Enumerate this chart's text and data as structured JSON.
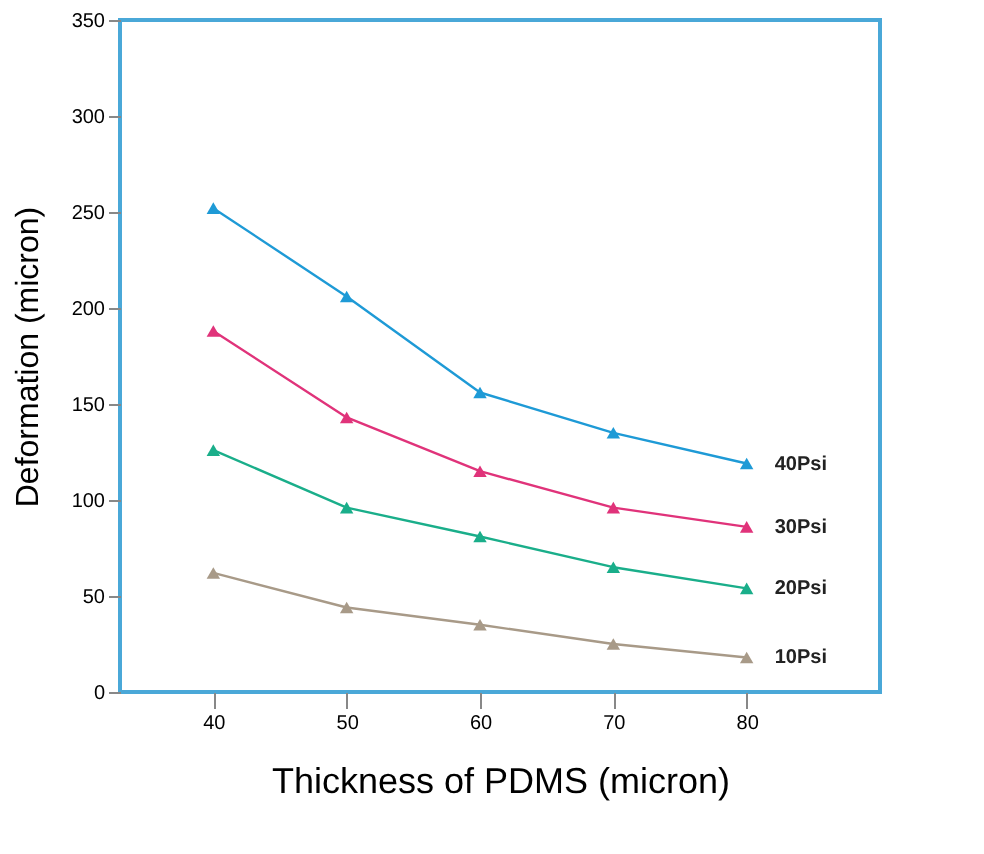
{
  "chart_data": {
    "type": "line",
    "xlabel": "Thickness of PDMS (micron)",
    "ylabel": "Deformation (micron)",
    "x": [
      40,
      50,
      60,
      70,
      80
    ],
    "xlim": [
      33,
      90
    ],
    "xticks": [
      40,
      50,
      60,
      70,
      80
    ],
    "ylim": [
      0,
      350
    ],
    "yticks": [
      0,
      50,
      100,
      150,
      200,
      250,
      300,
      350
    ],
    "grid": false,
    "legend": false,
    "marker": "triangle",
    "line_style": "solid",
    "series": [
      {
        "name": "40Psi",
        "color": "#1e9ad6",
        "values": [
          252,
          206,
          156,
          135,
          119
        ]
      },
      {
        "name": "30Psi",
        "color": "#e0337a",
        "values": [
          188,
          143,
          115,
          96,
          86
        ]
      },
      {
        "name": "20Psi",
        "color": "#1aae8a",
        "values": [
          126,
          96,
          81,
          65,
          54
        ]
      },
      {
        "name": "10Psi",
        "color": "#a89a88",
        "values": [
          62,
          44,
          35,
          25,
          18
        ]
      }
    ]
  }
}
